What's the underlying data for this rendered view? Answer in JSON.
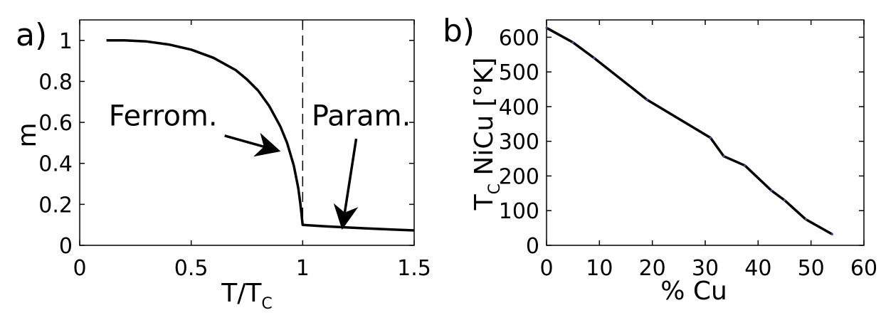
{
  "chart_data": [
    {
      "panel": "a)",
      "type": "line",
      "xlabel_main": "T/T",
      "xlabel_sub": "C",
      "ylabel": "m",
      "xlim": [
        0,
        1.5
      ],
      "ylim": [
        0,
        1.1
      ],
      "xticks": [
        0,
        0.5,
        1,
        1.5
      ],
      "xtick_labels": [
        "0",
        "0.5",
        "1",
        "1.5"
      ],
      "yticks": [
        0,
        0.2,
        0.4,
        0.6,
        0.8,
        1
      ],
      "ytick_labels": [
        "0",
        "0.2",
        "0.4",
        "0.6",
        "0.8",
        "1"
      ],
      "grid": false,
      "series": [
        {
          "x": [
            0.12,
            0.2,
            0.3,
            0.4,
            0.5,
            0.6,
            0.7,
            0.75,
            0.8,
            0.85,
            0.9,
            0.93,
            0.96,
            0.98,
            0.99,
            1.0,
            1.0,
            1.1,
            1.2,
            1.3,
            1.4,
            1.5
          ],
          "y": [
            1.0,
            1.0,
            0.995,
            0.98,
            0.955,
            0.915,
            0.855,
            0.81,
            0.755,
            0.68,
            0.58,
            0.5,
            0.39,
            0.28,
            0.2,
            0.1,
            0.1,
            0.093,
            0.087,
            0.082,
            0.077,
            0.073
          ],
          "color": "#000000"
        }
      ],
      "vline": {
        "x": 1,
        "style": "dashed"
      },
      "annotations": [
        {
          "text": "Ferrom.",
          "text_x": 0.13,
          "text_y": 0.585,
          "arrow_from": [
            0.65,
            0.535
          ],
          "arrow_to": [
            0.88,
            0.465
          ]
        },
        {
          "text": "Param.",
          "text_x": 1.04,
          "text_y": 0.585,
          "arrow_from": [
            1.24,
            0.52
          ],
          "arrow_to": [
            1.18,
            0.1
          ]
        }
      ]
    },
    {
      "panel": "b)",
      "type": "line",
      "xlabel": "% Cu",
      "ylabel_main": "T",
      "ylabel_sub": "C",
      "ylabel_rest": " NiCu [°K]",
      "xlim": [
        0,
        60
      ],
      "ylim": [
        0,
        650
      ],
      "xticks": [
        0,
        10,
        20,
        30,
        40,
        50,
        60
      ],
      "xtick_labels": [
        "0",
        "10",
        "20",
        "30",
        "40",
        "50",
        "60"
      ],
      "yticks": [
        0,
        100,
        200,
        300,
        400,
        500,
        600
      ],
      "ytick_labels": [
        "0",
        "100",
        "200",
        "300",
        "400",
        "500",
        "600"
      ],
      "grid": false,
      "series": [
        {
          "x": [
            0,
            5,
            9,
            19,
            31,
            33.5,
            37.5,
            42.5,
            45,
            49,
            54
          ],
          "y": [
            627,
            585,
            540,
            420,
            310,
            257,
            230,
            158,
            130,
            75,
            32
          ],
          "color": "#000000",
          "marker_color": "#4a4a9a"
        }
      ]
    }
  ]
}
